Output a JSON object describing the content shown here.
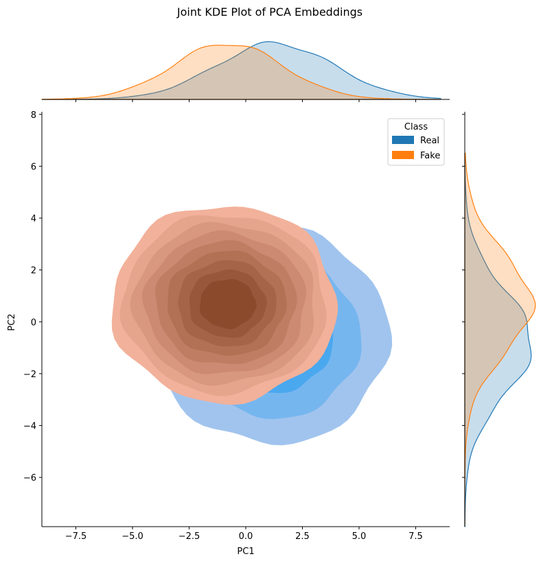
{
  "chart_data": {
    "type": "joint_kde",
    "title": "Joint KDE Plot of PCA Embeddings",
    "xlabel": "PC1",
    "ylabel": "PC2",
    "xlim": [
      -9.0,
      9.0
    ],
    "ylim": [
      -7.9,
      8.1
    ],
    "x_ticks": [
      -7.5,
      -5.0,
      -2.5,
      0.0,
      2.5,
      5.0,
      7.5
    ],
    "x_tick_labels": [
      "−7.5",
      "−5.0",
      "−2.5",
      "0.0",
      "2.5",
      "5.0",
      "7.5"
    ],
    "y_ticks": [
      -6,
      -4,
      -2,
      0,
      2,
      4,
      6,
      8
    ],
    "y_tick_labels": [
      "−6",
      "−4",
      "−2",
      "0",
      "2",
      "4",
      "6",
      "8"
    ],
    "legend": {
      "title": "Class",
      "placement": "top-right"
    },
    "series": [
      {
        "name": "Real",
        "color": "#1f77b4",
        "fill_light": "#a1c4ee",
        "fill_dark": "#1f9af0",
        "center": [
          1.3,
          -0.7
        ],
        "spread": [
          2.6,
          2.0
        ],
        "outer_contour_x": [
          -4.0,
          6.3
        ],
        "outer_contour_y": [
          -4.7,
          3.6
        ],
        "levels": 4,
        "x_marginal_mode": 1.3,
        "y_marginal_mode": -0.8
      },
      {
        "name": "Fake",
        "color": "#ff7f0e",
        "fill_light": "#f2b19a",
        "fill_dark": "#8b4a2c",
        "center": [
          -0.8,
          0.7
        ],
        "spread": [
          2.4,
          1.9
        ],
        "outer_contour_x": [
          -5.9,
          4.0
        ],
        "outer_contour_y": [
          -3.1,
          4.5
        ],
        "levels": 9,
        "x_marginal_mode": -0.8,
        "y_marginal_mode": 0.7
      }
    ]
  }
}
